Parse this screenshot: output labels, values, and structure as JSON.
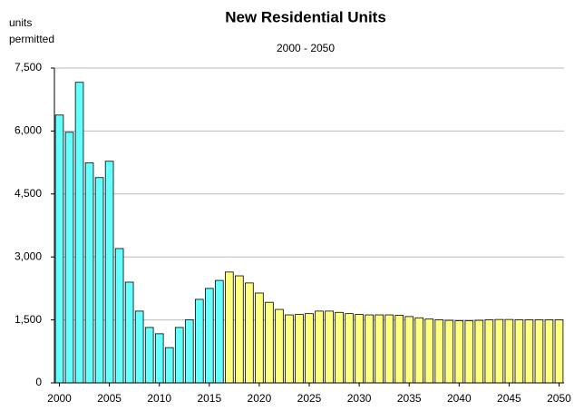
{
  "chart_data": {
    "type": "bar",
    "title": "New Residential Units",
    "subtitle": "2000 - 2050",
    "ylabel": [
      "units",
      "permitted"
    ],
    "x": [
      2000,
      2001,
      2002,
      2003,
      2004,
      2005,
      2006,
      2007,
      2008,
      2009,
      2010,
      2011,
      2012,
      2013,
      2014,
      2015,
      2016,
      2017,
      2018,
      2019,
      2020,
      2021,
      2022,
      2023,
      2024,
      2025,
      2026,
      2027,
      2028,
      2029,
      2030,
      2031,
      2032,
      2033,
      2034,
      2035,
      2036,
      2037,
      2038,
      2039,
      2040,
      2041,
      2042,
      2043,
      2044,
      2045,
      2046,
      2047,
      2048,
      2049,
      2050
    ],
    "values": [
      6380,
      5970,
      7160,
      5240,
      4890,
      5280,
      3200,
      2400,
      1710,
      1320,
      1170,
      840,
      1320,
      1500,
      1990,
      2250,
      2440,
      2640,
      2550,
      2380,
      2140,
      1920,
      1750,
      1620,
      1630,
      1650,
      1710,
      1710,
      1680,
      1650,
      1630,
      1620,
      1620,
      1620,
      1610,
      1580,
      1550,
      1520,
      1500,
      1490,
      1480,
      1480,
      1490,
      1500,
      1510,
      1510,
      1500,
      1500,
      1500,
      1500,
      1500
    ],
    "colors": [
      "#66ffff",
      "#66ffff",
      "#66ffff",
      "#66ffff",
      "#66ffff",
      "#66ffff",
      "#66ffff",
      "#66ffff",
      "#66ffff",
      "#66ffff",
      "#66ffff",
      "#66ffff",
      "#66ffff",
      "#66ffff",
      "#66ffff",
      "#66ffff",
      "#66ffff",
      "#ffff80",
      "#ffff80",
      "#ffff80",
      "#ffff80",
      "#ffff80",
      "#ffff80",
      "#ffff80",
      "#ffff80",
      "#ffff80",
      "#ffff80",
      "#ffff80",
      "#ffff80",
      "#ffff80",
      "#ffff80",
      "#ffff80",
      "#ffff80",
      "#ffff80",
      "#ffff80",
      "#ffff80",
      "#ffff80",
      "#ffff80",
      "#ffff80",
      "#ffff80",
      "#ffff80",
      "#ffff80",
      "#ffff80",
      "#ffff80",
      "#ffff80",
      "#ffff80",
      "#ffff80",
      "#ffff80",
      "#ffff80",
      "#ffff80",
      "#ffff80"
    ],
    "xlim": [
      1999.5,
      2050.5
    ],
    "xticks": [
      2000,
      2005,
      2010,
      2015,
      2020,
      2025,
      2030,
      2035,
      2040,
      2045,
      2050
    ],
    "ylim": [
      0,
      7500
    ],
    "yticks": [
      0,
      {
        "value": 1500,
        "label": "1,500"
      },
      {
        "value": 3000,
        "label": "3,000"
      },
      {
        "value": 4500,
        "label": "4,500"
      },
      {
        "value": 6000,
        "label": "6,000"
      },
      {
        "value": 7500,
        "label": "7,500"
      }
    ],
    "grid": true
  }
}
